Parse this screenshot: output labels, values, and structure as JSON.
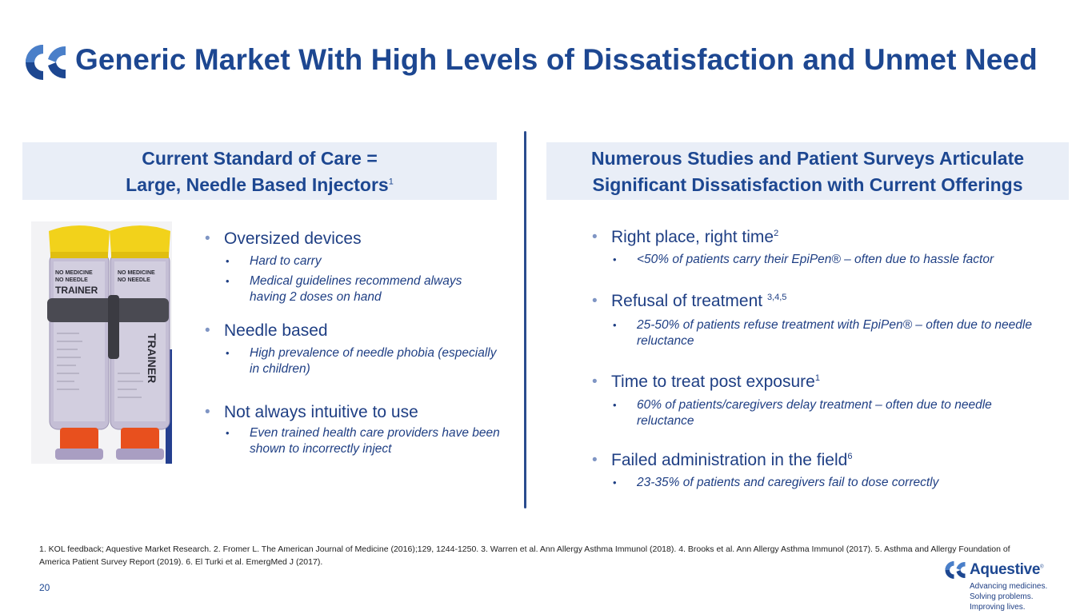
{
  "title": "Generic Market With High Levels of Dissatisfaction and Unmet Need",
  "left_header": {
    "line1": "Current Standard of Care =",
    "line2": "Large, Needle Based Injectors",
    "sup": "1"
  },
  "right_header": {
    "line1": "Numerous Studies and Patient Surveys Articulate",
    "line2": "Significant Dissatisfaction with Current Offerings"
  },
  "left_bullets": [
    {
      "text": "Oversized devices",
      "subs": [
        "Hard to carry",
        "Medical guidelines recommend always having 2 doses on hand"
      ]
    },
    {
      "text": "Needle based",
      "subs": [
        "High prevalence of needle phobia (especially in children)"
      ]
    },
    {
      "text": "Not always intuitive to use",
      "subs": [
        "Even trained health care providers have been shown to incorrectly inject"
      ]
    }
  ],
  "right_bullets": [
    {
      "text": "Right place, right time",
      "sup": "2",
      "subs": [
        "<50% of patients carry their EpiPen® – often due to hassle factor"
      ]
    },
    {
      "text": "Refusal of treatment ",
      "sup": "3,4,5",
      "subs": [
        "25-50% of patients refuse treatment with EpiPen® – often due to needle reluctance"
      ]
    },
    {
      "text": "Time to treat post exposure",
      "sup": "1",
      "subs": [
        "60% of patients/caregivers delay treatment – often due to needle reluctance"
      ]
    },
    {
      "text": "Failed administration in the field",
      "sup": "6",
      "subs": [
        "23-35% of patients and caregivers fail to dose correctly"
      ]
    }
  ],
  "photo": {
    "label_trainer": "TRAINER",
    "label_no_medicine": "NO MEDICINE",
    "label_no_needle": "NO NEEDLE",
    "label_trainer_2": "TRAINER",
    "label_no_medicine_2": "NO MEDICINE",
    "label_no_needle_2": "NO NEEDLE",
    "colors": {
      "cap": "#f2d21b",
      "tip": "#e8501e",
      "body": "#b9b3cc"
    }
  },
  "footnote": "1. KOL feedback; Aquestive Market Research. 2. Fromer L. The American Journal of Medicine (2016);129, 1244-1250. 3. Warren et al. Ann Allergy Asthma Immunol (2018). 4. Brooks et al. Ann Allergy Asthma Immunol (2017). 5. Asthma and Allergy Foundation of America Patient Survey Report (2019). 6. El Turki et al. EmergMed J (2017).",
  "page_number": "20",
  "brand": {
    "name": "Aquestive",
    "trademark": "®",
    "tagline": [
      "Advancing medicines.",
      "Solving problems.",
      "Improving lives."
    ]
  },
  "colors": {
    "primary": "#1d4791",
    "header_bg": "#e9eef7",
    "bullet_accent": "#7f95c4",
    "logo_light": "#4a7fc9"
  }
}
